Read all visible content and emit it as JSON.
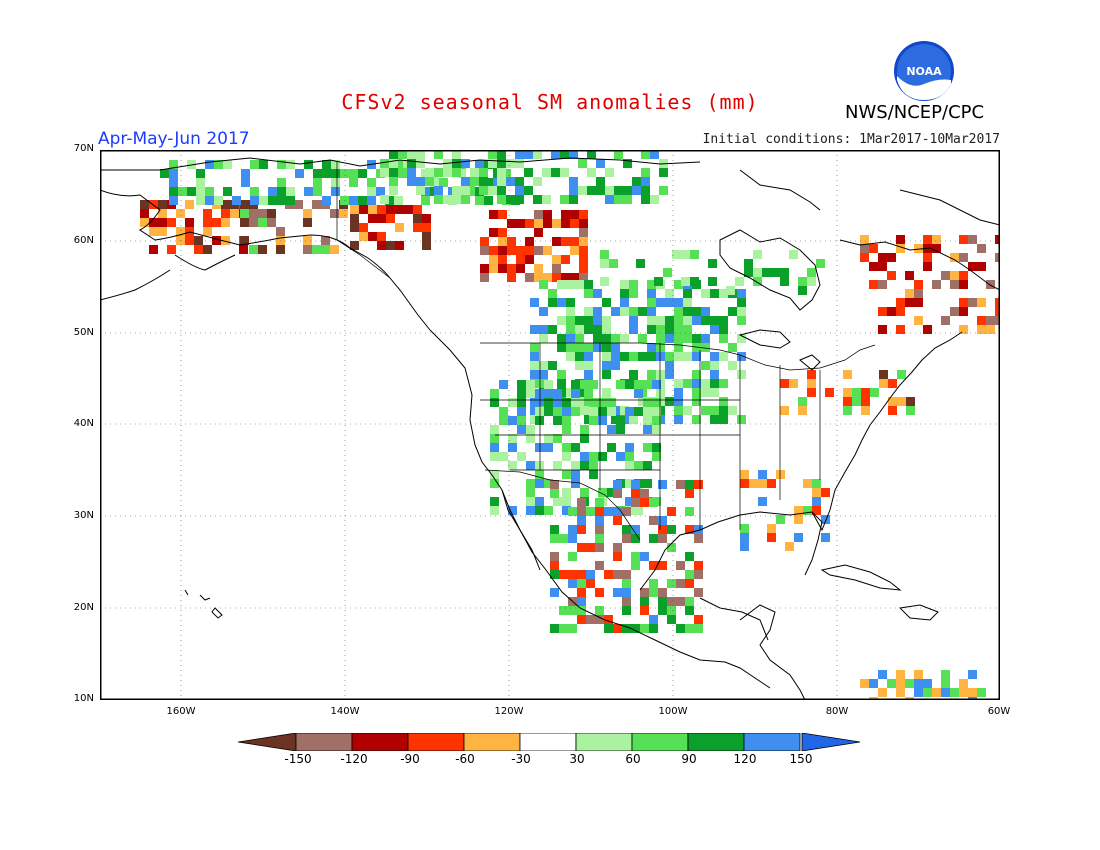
{
  "title": "CFSv2 seasonal SM anomalies (mm)",
  "agency": "NWS/NCEP/CPC",
  "logo_text": "NOAA",
  "season": "Apr-May-Jun 2017",
  "initial_conditions": "Initial conditions: 1Mar2017-10Mar2017",
  "lat_labels": [
    "70N",
    "60N",
    "50N",
    "40N",
    "30N",
    "20N",
    "10N"
  ],
  "lon_labels": [
    "160W",
    "140W",
    "120W",
    "100W",
    "80W",
    "60W"
  ],
  "colorbar": {
    "labels": [
      "-150",
      "-120",
      "-90",
      "-60",
      "-30",
      "30",
      "60",
      "90",
      "120",
      "150"
    ],
    "colors": [
      "#6b3322",
      "#a07067",
      "#b00000",
      "#ff3300",
      "#ffb340",
      "#ffffff",
      "#aaf2a0",
      "#55e055",
      "#0aa02a",
      "#3f8ff0",
      "#2266e8"
    ]
  },
  "anomaly_palette": {
    "dry_extreme": "#6b3322",
    "very_dry": "#a07067",
    "dry_120": "#b00000",
    "dry_90": "#ff3300",
    "dry_60": "#ffb340",
    "wet_60": "#aaf2a0",
    "wet_90": "#55e055",
    "wet_120": "#0aa02a",
    "wet_150": "#3f8ff0"
  }
}
